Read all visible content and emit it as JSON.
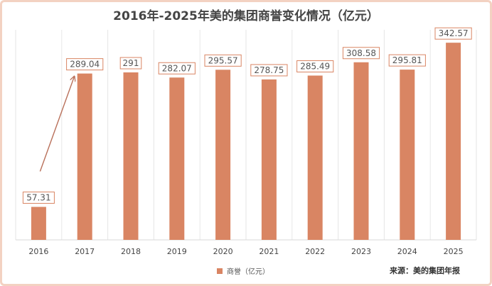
{
  "title": "2016年-2025年美的集团商誉变化情况（亿元）",
  "source": "来源：美的集团年报",
  "colors": {
    "bar": "#d98563",
    "label_border": "#d98563",
    "label_text": "#555555",
    "arrow": "#b9705a",
    "grid": "#e6e6e6"
  },
  "chart_data": {
    "type": "bar",
    "title": "2016年-2025年美的集团商誉变化情况（亿元）",
    "categories": [
      "2016",
      "2017",
      "2018",
      "2019",
      "2020",
      "2021",
      "2022",
      "2023",
      "2024",
      "2025"
    ],
    "series": [
      {
        "name": "商誉（亿元）",
        "values": [
          57.31,
          289.04,
          291,
          282.07,
          295.57,
          278.75,
          285.49,
          308.58,
          295.81,
          342.57
        ]
      }
    ],
    "data_labels": [
      "57.31",
      "289.04",
      "291",
      "282.07",
      "295.57",
      "278.75",
      "285.49",
      "308.58",
      "295.81",
      "342.57"
    ],
    "ylim": [
      0,
      365
    ],
    "xlabel": "",
    "ylabel": "",
    "grid": "vertical",
    "legend": "bottom-center",
    "annotations": [
      {
        "type": "arrow",
        "from": "2016",
        "to": "2017"
      }
    ]
  }
}
